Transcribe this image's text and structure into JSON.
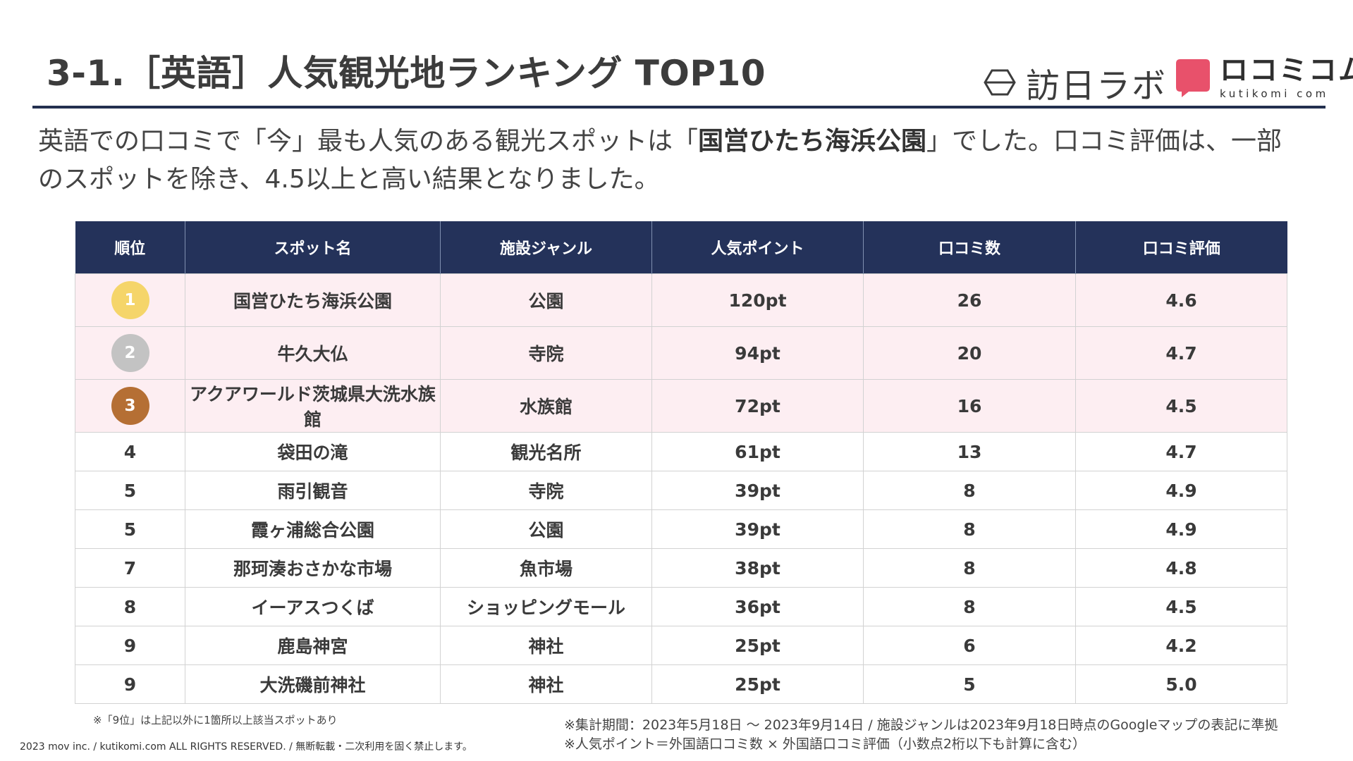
{
  "title": "3-1.［英語］人気観光地ランキング TOP10",
  "logos": {
    "houjin_labo": "訪日ラボ",
    "kutikomi_main": "ロコミコム",
    "kutikomi_sub": "kutikomi com",
    "brand_color": "#e8516b"
  },
  "lead": {
    "part1": "英語での口コミで「今」最も人気のある観光スポットは「",
    "highlight": "国営ひたち海浜公園",
    "part2": "」でした。口コミ評価は、一部のスポットを除き、4.5以上と高い結果となりました。"
  },
  "table": {
    "headers": [
      "順位",
      "スポット名",
      "施設ジャンル",
      "人気ポイント",
      "口コミ数",
      "口コミ評価"
    ],
    "rows": [
      {
        "rank": "1",
        "name": "国営ひたち海浜公園",
        "genre": "公園",
        "points": "120pt",
        "count": "26",
        "rating": "4.6",
        "medal_color": "#f5d56a"
      },
      {
        "rank": "2",
        "name": "牛久大仏",
        "genre": "寺院",
        "points": "94pt",
        "count": "20",
        "rating": "4.7",
        "medal_color": "#c3c3c3"
      },
      {
        "rank": "3",
        "name": "アクアワールド茨城県大洗水族館",
        "genre": "水族館",
        "points": "72pt",
        "count": "16",
        "rating": "4.5",
        "medal_color": "#b56f34"
      },
      {
        "rank": "4",
        "name": "袋田の滝",
        "genre": "観光名所",
        "points": "61pt",
        "count": "13",
        "rating": "4.7"
      },
      {
        "rank": "5",
        "name": "雨引観音",
        "genre": "寺院",
        "points": "39pt",
        "count": "8",
        "rating": "4.9"
      },
      {
        "rank": "5",
        "name": "霞ヶ浦総合公園",
        "genre": "公園",
        "points": "39pt",
        "count": "8",
        "rating": "4.9"
      },
      {
        "rank": "7",
        "name": "那珂湊おさかな市場",
        "genre": "魚市場",
        "points": "38pt",
        "count": "8",
        "rating": "4.8"
      },
      {
        "rank": "8",
        "name": "イーアスつくば",
        "genre": "ショッピングモール",
        "points": "36pt",
        "count": "8",
        "rating": "4.5"
      },
      {
        "rank": "9",
        "name": "鹿島神宮",
        "genre": "神社",
        "points": "25pt",
        "count": "6",
        "rating": "4.2"
      },
      {
        "rank": "9",
        "name": "大洗磯前神社",
        "genre": "神社",
        "points": "25pt",
        "count": "5",
        "rating": "5.0"
      }
    ]
  },
  "footnotes": {
    "rank_note": "※「9位」は上記以外に1箇所以上該当スポットあり",
    "period": "※集計期間：2023年5月18日 〜 2023年9月14日 / 施設ジャンルは2023年9月18日時点のGoogleマップの表記に準拠",
    "points_formula": "※人気ポイント＝外国語口コミ数 × 外国語口コミ評価（小数点2桁以下も計算に含む）",
    "copyright": "2023 mov inc. / kutikomi.com ALL RIGHTS RESERVED. / 無断転載・二次利用を固く禁止します。"
  }
}
